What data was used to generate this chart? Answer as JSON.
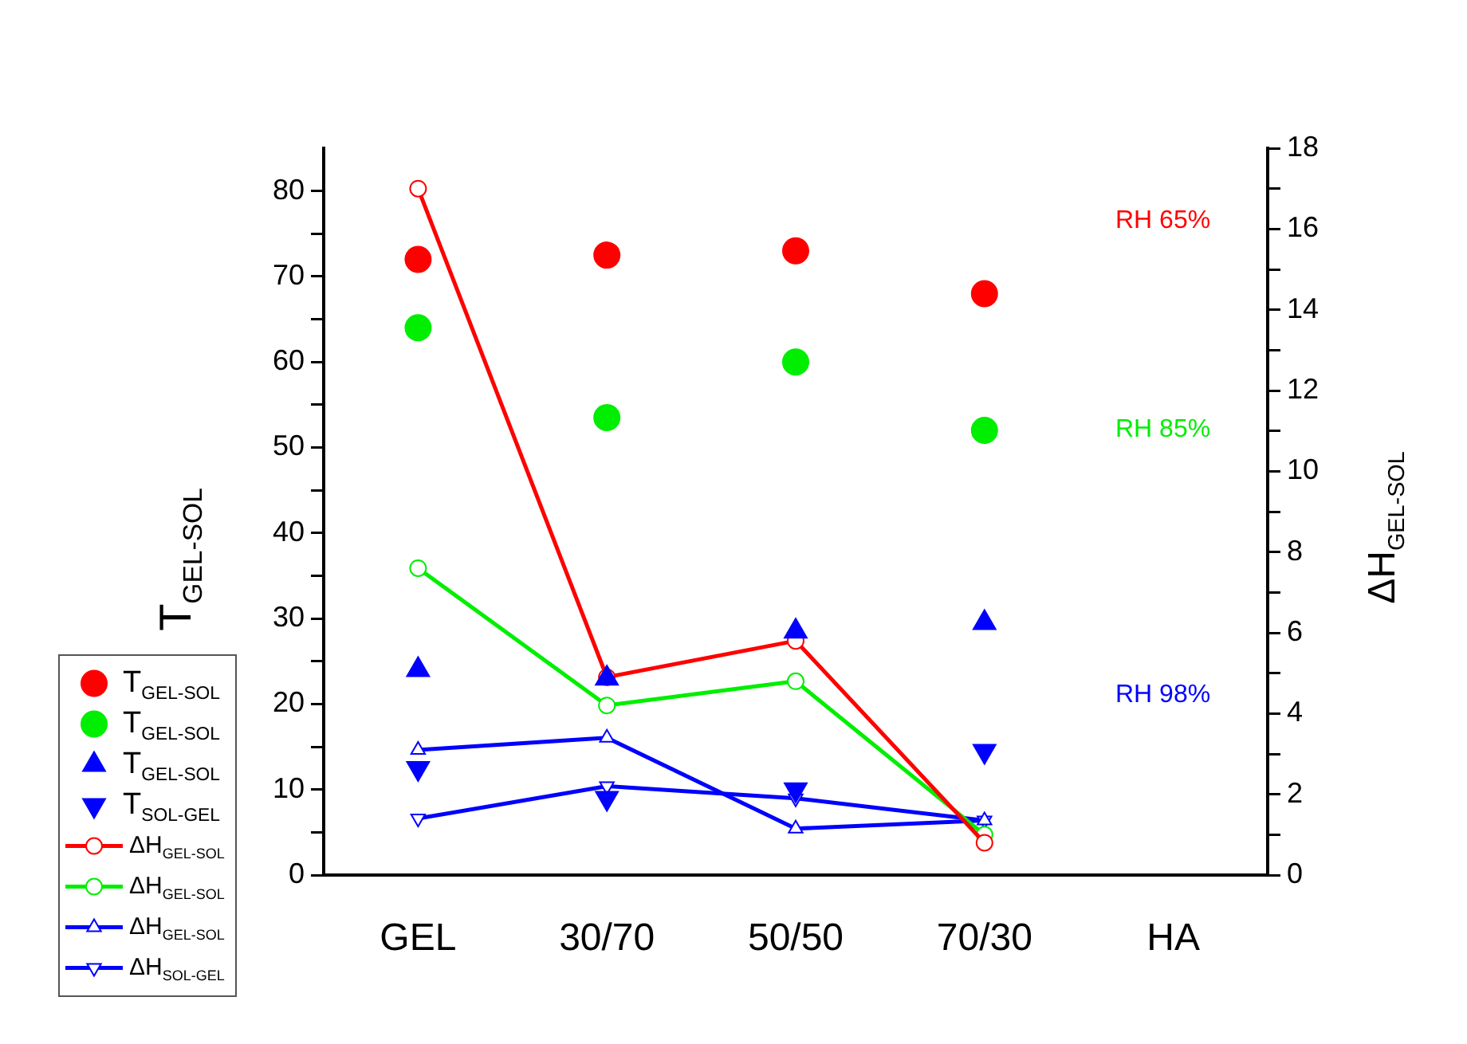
{
  "chart_data": {
    "type": "scatter",
    "categories": [
      "GEL",
      "30/70",
      "50/50",
      "70/30",
      "HA"
    ],
    "ylabel": "T$_{GEL-SOL}$",
    "y2label": "ΔH$_{GEL-SOL}$",
    "ylim": [
      0,
      85
    ],
    "yticks": [
      0,
      {
        "value": 5,
        "label": null
      },
      10,
      {
        "value": 15,
        "label": null
      },
      20,
      {
        "value": 25,
        "label": null
      },
      30,
      {
        "value": 35,
        "label": null
      },
      40,
      {
        "value": 45,
        "label": null
      },
      50,
      {
        "value": 55,
        "label": null
      },
      60,
      {
        "value": 65,
        "label": null
      },
      70,
      {
        "value": 75,
        "label": null
      },
      80
    ],
    "y2lim": [
      0,
      18
    ],
    "y2ticks": [
      0,
      {
        "value": 1,
        "label": null
      },
      2,
      {
        "value": 3,
        "label": null
      },
      4,
      {
        "value": 5,
        "label": null
      },
      6,
      {
        "value": 7,
        "label": null
      },
      8,
      {
        "value": 9,
        "label": null
      },
      10,
      {
        "value": 11,
        "label": null
      },
      12,
      {
        "value": 13,
        "label": null
      },
      14,
      {
        "value": 15,
        "label": null
      },
      16,
      {
        "value": 17,
        "label": null
      },
      18
    ],
    "legend": "bottom left",
    "annotations": [
      "RH 65%",
      "RH 85%",
      "RH 98%"
    ],
    "series": [
      {
        "name": "T$_{GEL-SOL}$",
        "marker": "circle",
        "color": "#ff0000",
        "values": [
          72,
          72.5,
          73,
          68,
          null
        ]
      },
      {
        "name": "T$_{GEL-SOL}$",
        "marker": "circle",
        "color": "#00ee00",
        "values": [
          64,
          53.5,
          60,
          52,
          null
        ]
      },
      {
        "name": "T$_{GEL-SOL}$",
        "marker": "triangle",
        "color": "#0000ff",
        "values": [
          24,
          23,
          28.5,
          29.5,
          null
        ]
      },
      {
        "name": "T$_{SOL-GEL}$",
        "marker": "triangle-down",
        "color": "#0000ff",
        "values": [
          12.5,
          9,
          10,
          14.5,
          null
        ]
      },
      {
        "name": "ΔH$_{GEL-SOL}$",
        "type": "line",
        "axis": "y2",
        "marker": "circle",
        "color": "#ff0000",
        "values": [
          17,
          4.9,
          5.8,
          0.8,
          null
        ]
      },
      {
        "name": "ΔH$_{GEL-SOL}$",
        "type": "line",
        "axis": "y2",
        "marker": "circle",
        "color": "#00ee00",
        "values": [
          7.6,
          4.2,
          4.8,
          1,
          null
        ]
      },
      {
        "name": "ΔH$_{GEL-SOL}$",
        "type": "line",
        "axis": "y2",
        "marker": "triangle",
        "color": "#0000ff",
        "values": [
          3.1,
          3.4,
          1.15,
          1.35,
          null
        ]
      },
      {
        "name": "ΔH$_{SOL-GEL}$",
        "type": "line",
        "axis": "y2",
        "marker": "triangle-down",
        "color": "#0000ff",
        "values": [
          1.4,
          2.2,
          1.9,
          1.35,
          null
        ]
      }
    ]
  }
}
